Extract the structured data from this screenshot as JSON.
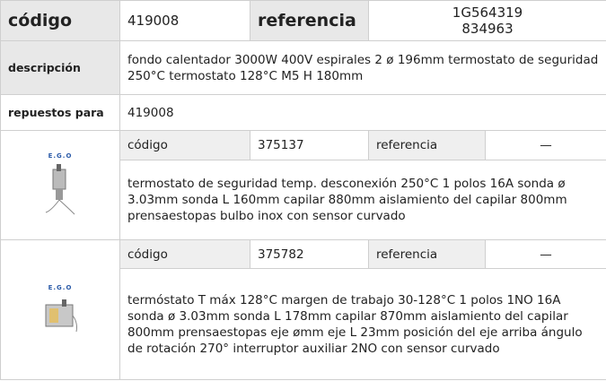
{
  "header": {
    "code_label": "código",
    "code": "419008",
    "reference_label": "referencia",
    "references": [
      "1G564319",
      "834963"
    ]
  },
  "description": {
    "label": "descripción",
    "text": "fondo calentador  3000W 400V espirales 2 ø 196mm termostato de seguridad 250°C termostato 128°C M5 H 180mm"
  },
  "spare_for": {
    "label": "repuestos para",
    "value": "419008"
  },
  "parts": [
    {
      "brand": "E.G.O",
      "code_label": "código",
      "code": "375137",
      "reference_label": "referencia",
      "reference": "—",
      "description": "termostato de seguridad  temp. desconexión 250°C 1 polos 16A sonda ø 3.03mm sonda L 160mm capilar 880mm aislamiento del capilar 800mm prensaestopas bulbo inox con sensor curvado"
    },
    {
      "brand": "E.G.O",
      "code_label": "código",
      "code": "375782",
      "reference_label": "referencia",
      "reference": "—",
      "description": "termóstato  T máx 128°C margen de trabajo 30-128°C 1 polos 1NO 16A sonda ø 3.03mm sonda L 178mm capilar 870mm aislamiento del capilar 800mm prensaestopas eje ømm eje L 23mm posición del eje arriba ángulo de rotación 270° interruptor auxiliar 2NO con sensor curvado"
    }
  ]
}
